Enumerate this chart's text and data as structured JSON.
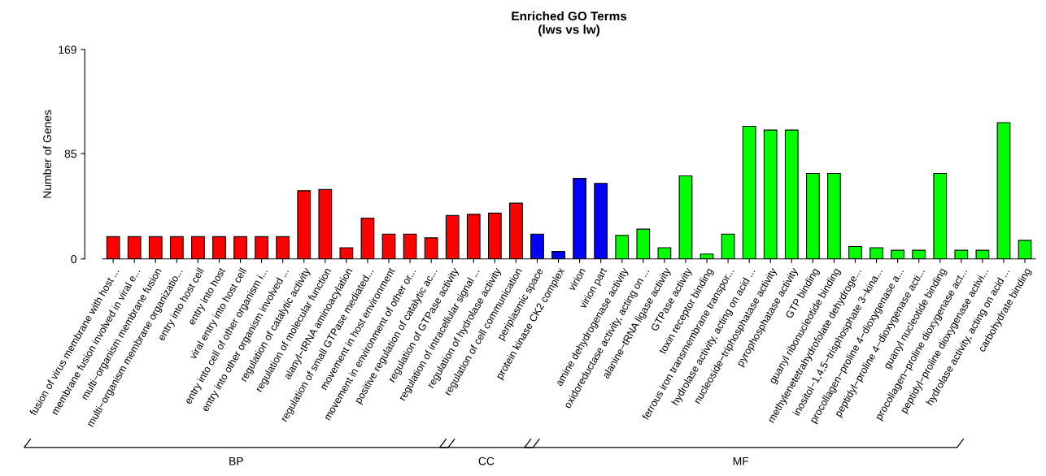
{
  "chart_data": {
    "type": "bar",
    "title": "Enriched GO Terms",
    "subtitle": "(lws vs lw)",
    "ylabel": "Number of Genes",
    "categories": [
      "fusion of virus membrane with host ...",
      "membrane fusion involved in viral e...",
      "multi−organism membrane fusion",
      "multi−organism membrane organizatio...",
      "entry into host cell",
      "entry into host",
      "viral entry into host cell",
      "entry into cell of other organism i...",
      "entry into other organism involved ...",
      "regulation of catalytic activity",
      "regulation of molecular function",
      "alanyl−tRNA aminoacylation",
      "regulation of small GTPase mediated...",
      "movement in host environment",
      "movement in environment of other or...",
      "positive regulation of catalytic ac...",
      "regulation of GTPase activity",
      "regulation of intracellular signal ...",
      "regulation of hydrolase activity",
      "regulation of cell communication",
      "periplasmic space",
      "protein kinase CK2 complex",
      "virion",
      "virion part",
      "amine dehydrogenase activity",
      "oxidoreductase activity, acting on ...",
      "alanine−tRNA ligase activity",
      "GTPase activity",
      "toxin receptor binding",
      "ferrous iron transmembrane transpor...",
      "hydrolase activity, acting on acid ...",
      "nucleoside−triphosphatase activity",
      "pyrophosphatase activity",
      "GTP binding",
      "guanyl ribonucleotide binding",
      "methylenetetrahydrofolate dehydroge...",
      "inositol−1,4,5−trisphosphate 3−kina...",
      "procollagen−proline 4−dioxygenase a...",
      "peptidyl−proline 4−dioxygenase acti...",
      "guanyl nucleotide binding",
      "procollagen−proline dioxygenase act...",
      "peptidyl−proline dioxygenase activi...",
      "hydrolase activity, acting on acid ...",
      "carbohydrate binding"
    ],
    "values": [
      18,
      18,
      18,
      18,
      18,
      18,
      18,
      18,
      18,
      55,
      56,
      9,
      33,
      20,
      20,
      17,
      35,
      36,
      37,
      45,
      20,
      6,
      65,
      61,
      19,
      24,
      9,
      67,
      4,
      20,
      107,
      104,
      104,
      69,
      69,
      10,
      9,
      7,
      7,
      69,
      7,
      7,
      110,
      15
    ],
    "colors": [
      "#ff0000",
      "#ff0000",
      "#ff0000",
      "#ff0000",
      "#ff0000",
      "#ff0000",
      "#ff0000",
      "#ff0000",
      "#ff0000",
      "#ff0000",
      "#ff0000",
      "#ff0000",
      "#ff0000",
      "#ff0000",
      "#ff0000",
      "#ff0000",
      "#ff0000",
      "#ff0000",
      "#ff0000",
      "#ff0000",
      "#0000ff",
      "#0000ff",
      "#0000ff",
      "#0000ff",
      "#00ff00",
      "#00ff00",
      "#00ff00",
      "#00ff00",
      "#00ff00",
      "#00ff00",
      "#00ff00",
      "#00ff00",
      "#00ff00",
      "#00ff00",
      "#00ff00",
      "#00ff00",
      "#00ff00",
      "#00ff00",
      "#00ff00",
      "#00ff00",
      "#00ff00",
      "#00ff00",
      "#00ff00",
      "#00ff00"
    ],
    "annotations": [
      "BP",
      "CC",
      "MF"
    ],
    "ylim": [
      0,
      169
    ],
    "yticks": [
      0,
      85,
      169
    ],
    "grid": false,
    "legend": false
  }
}
